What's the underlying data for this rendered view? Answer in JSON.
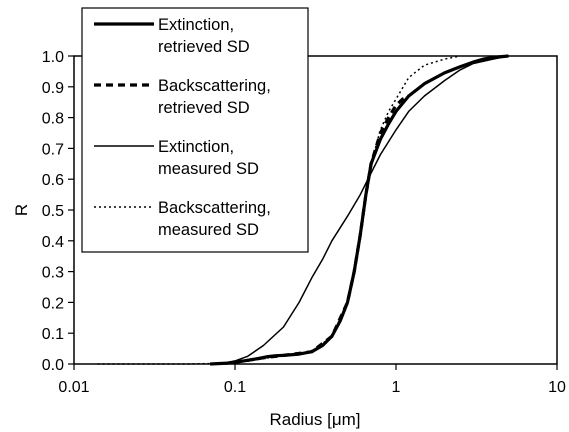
{
  "chart_data": {
    "type": "line",
    "title": "",
    "xlabel": "Radius [μm]",
    "ylabel": "R",
    "x_scale": "log",
    "xlim": [
      0.01,
      10
    ],
    "ylim": [
      0.0,
      1.0
    ],
    "x_ticks": [
      "0.01",
      "0.1",
      "1",
      "10"
    ],
    "y_ticks": [
      "0.0",
      "0.1",
      "0.2",
      "0.3",
      "0.4",
      "0.5",
      "0.6",
      "0.7",
      "0.8",
      "0.9",
      "1.0"
    ],
    "grid": false,
    "legend_position": "top-left inside plot",
    "series": [
      {
        "name": [
          "Extinction,",
          "retrieved SD"
        ],
        "style": "thick-solid",
        "color": "#000000",
        "points": [
          [
            0.07,
            0.0
          ],
          [
            0.09,
            0.003
          ],
          [
            0.1,
            0.006
          ],
          [
            0.12,
            0.012
          ],
          [
            0.14,
            0.018
          ],
          [
            0.16,
            0.024
          ],
          [
            0.18,
            0.027
          ],
          [
            0.2,
            0.028
          ],
          [
            0.25,
            0.032
          ],
          [
            0.3,
            0.04
          ],
          [
            0.35,
            0.06
          ],
          [
            0.4,
            0.09
          ],
          [
            0.45,
            0.14
          ],
          [
            0.5,
            0.2
          ],
          [
            0.55,
            0.3
          ],
          [
            0.6,
            0.42
          ],
          [
            0.65,
            0.55
          ],
          [
            0.7,
            0.65
          ],
          [
            0.8,
            0.73
          ],
          [
            0.9,
            0.78
          ],
          [
            1.0,
            0.82
          ],
          [
            1.2,
            0.87
          ],
          [
            1.5,
            0.91
          ],
          [
            2.0,
            0.945
          ],
          [
            2.5,
            0.965
          ],
          [
            3.0,
            0.98
          ],
          [
            3.5,
            0.99
          ],
          [
            4.0,
            0.995
          ],
          [
            5.0,
            1.0
          ]
        ]
      },
      {
        "name": [
          "Backscattering,",
          "retrieved SD"
        ],
        "style": "thick-dashed",
        "color": "#000000",
        "points": [
          [
            0.1,
            0.006
          ],
          [
            0.12,
            0.012
          ],
          [
            0.15,
            0.02
          ],
          [
            0.2,
            0.028
          ],
          [
            0.3,
            0.04
          ],
          [
            0.4,
            0.09
          ],
          [
            0.5,
            0.2
          ],
          [
            0.55,
            0.3
          ],
          [
            0.6,
            0.42
          ],
          [
            0.65,
            0.55
          ],
          [
            0.7,
            0.65
          ],
          [
            0.8,
            0.75
          ],
          [
            0.9,
            0.8
          ],
          [
            1.0,
            0.84
          ],
          [
            1.1,
            0.86
          ],
          [
            1.2,
            0.87
          ]
        ]
      },
      {
        "name": [
          "Extinction,",
          "measured SD"
        ],
        "style": "thin-solid",
        "color": "#000000",
        "points": [
          [
            0.08,
            0.0
          ],
          [
            0.1,
            0.01
          ],
          [
            0.12,
            0.025
          ],
          [
            0.15,
            0.06
          ],
          [
            0.2,
            0.12
          ],
          [
            0.25,
            0.2
          ],
          [
            0.3,
            0.28
          ],
          [
            0.35,
            0.34
          ],
          [
            0.4,
            0.4
          ],
          [
            0.5,
            0.48
          ],
          [
            0.6,
            0.55
          ],
          [
            0.7,
            0.62
          ],
          [
            0.8,
            0.68
          ],
          [
            1.0,
            0.76
          ],
          [
            1.2,
            0.82
          ],
          [
            1.5,
            0.87
          ],
          [
            2.0,
            0.92
          ],
          [
            2.5,
            0.955
          ],
          [
            3.0,
            0.975
          ],
          [
            4.0,
            0.99
          ],
          [
            5.0,
            1.0
          ]
        ]
      },
      {
        "name": [
          "Backscattering,",
          "measured SD"
        ],
        "style": "thin-dotted",
        "color": "#000000",
        "points": [
          [
            0.014,
            0.0
          ],
          [
            0.05,
            0.0
          ],
          [
            0.1,
            0.003
          ],
          [
            0.2,
            0.028
          ],
          [
            0.3,
            0.04
          ],
          [
            0.4,
            0.09
          ],
          [
            0.5,
            0.2
          ],
          [
            0.6,
            0.42
          ],
          [
            0.7,
            0.65
          ],
          [
            0.8,
            0.76
          ],
          [
            0.9,
            0.82
          ],
          [
            1.0,
            0.86
          ],
          [
            1.2,
            0.93
          ],
          [
            1.5,
            0.97
          ],
          [
            2.0,
            0.99
          ],
          [
            2.5,
            1.0
          ]
        ]
      }
    ]
  }
}
